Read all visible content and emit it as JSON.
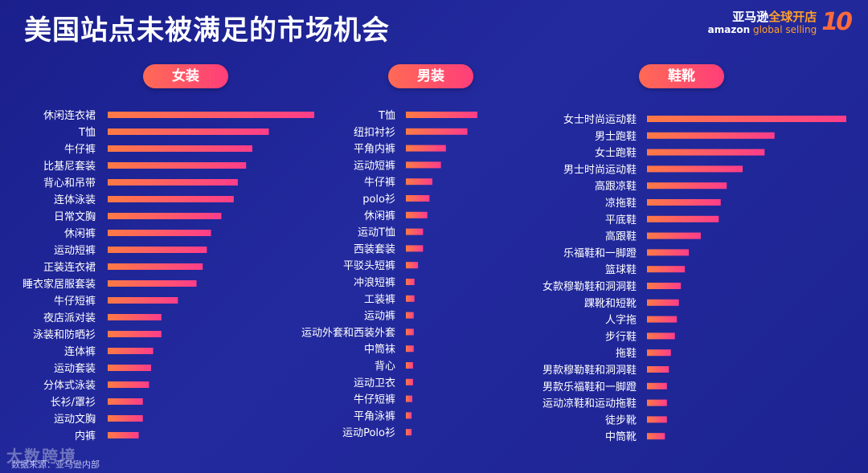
{
  "title": "美国站点未被满足的市场机会",
  "logo": {
    "cn_white": "亚马逊",
    "cn_orange": "全球开店",
    "en_white": "amazon",
    "en_orange": " global selling",
    "ten": "10"
  },
  "footer": "数据来源：亚马逊内部",
  "watermark": "大数跨境",
  "colors": {
    "bar_start": "#ff7a45",
    "bar_end": "#ff3d8a",
    "background": "#1f2596"
  },
  "chart_data": [
    {
      "type": "bar",
      "orientation": "horizontal",
      "title": "女装",
      "categories": [
        "休闲连衣裙",
        "T恤",
        "牛仔裤",
        "比基尼套装",
        "背心和吊带",
        "连体泳装",
        "日常文胸",
        "休闲裤",
        "运动短裤",
        "正装连衣裙",
        "睡衣家居服套装",
        "牛仔短裤",
        "夜店派对装",
        "泳装和防晒衫",
        "连体裤",
        "运动套装",
        "分体式泳装",
        "长衫/罩衫",
        "运动文胸",
        "内裤"
      ],
      "values": [
        100,
        78,
        70,
        67,
        63,
        61,
        55,
        50,
        48,
        46,
        43,
        34,
        26,
        26,
        22,
        21,
        20,
        17,
        17,
        15
      ],
      "xlim": [
        0,
        100
      ]
    },
    {
      "type": "bar",
      "orientation": "horizontal",
      "title": "男装",
      "categories": [
        "T恤",
        "纽扣衬衫",
        "平角内裤",
        "运动短裤",
        "牛仔裤",
        "polo衫",
        "休闲裤",
        "运动T恤",
        "西装套装",
        "平驳头短裤",
        "冲浪短裤",
        "工装裤",
        "运动裤",
        "运动外套和西装外套",
        "中筒袜",
        "背心",
        "运动卫衣",
        "牛仔短裤",
        "平角泳裤",
        "运动Polo衫"
      ],
      "values": [
        100,
        86,
        56,
        49,
        37,
        33,
        30,
        24,
        24,
        17,
        12,
        12,
        11,
        11,
        11,
        10,
        10,
        9,
        8,
        8
      ],
      "xlim": [
        0,
        100
      ]
    },
    {
      "type": "bar",
      "orientation": "horizontal",
      "title": "鞋靴",
      "categories": [
        "女士时尚运动鞋",
        "男士跑鞋",
        "女士跑鞋",
        "男士时尚运动鞋",
        "高跟凉鞋",
        "凉拖鞋",
        "平底鞋",
        "高跟鞋",
        "乐福鞋和一脚蹬",
        "篮球鞋",
        "女款穆勒鞋和洞洞鞋",
        "踝靴和短靴",
        "人字拖",
        "步行鞋",
        "拖鞋",
        "男款穆勒鞋和洞洞鞋",
        "男款乐福鞋和一脚蹬",
        "运动凉鞋和运动拖鞋",
        "徒步靴",
        "中筒靴"
      ],
      "values": [
        100,
        64,
        59,
        48,
        40,
        37,
        36,
        27,
        21,
        19,
        17,
        16,
        15,
        14,
        12,
        11,
        10,
        10,
        10,
        9
      ],
      "xlim": [
        0,
        100
      ]
    }
  ]
}
